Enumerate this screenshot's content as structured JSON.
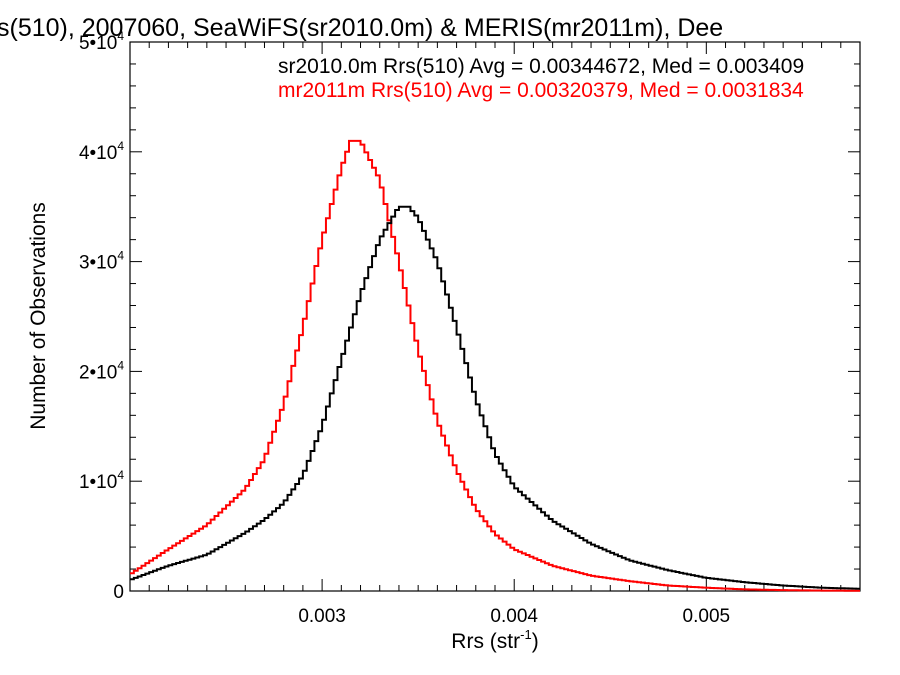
{
  "chart_data": {
    "type": "line",
    "title": "s(510), 2007060, SeaWiFS(sr2010.0m) & MERIS(mr2011m), Dee",
    "xlabel_main": "Rrs (str",
    "xlabel_sup": "-1",
    "xlabel_close": ")",
    "ylabel": "Number of Observations",
    "xlim": [
      0.002,
      0.0058
    ],
    "ylim": [
      0,
      50000
    ],
    "x_ticks": [
      {
        "value": 0.003,
        "label": "0.003"
      },
      {
        "value": 0.004,
        "label": "0.004"
      },
      {
        "value": 0.005,
        "label": "0.005"
      }
    ],
    "y_ticks": [
      {
        "value": 0,
        "mantissa": "0",
        "exp": ""
      },
      {
        "value": 10000,
        "mantissa": "1•10",
        "exp": "4"
      },
      {
        "value": 20000,
        "mantissa": "2•10",
        "exp": "4"
      },
      {
        "value": 30000,
        "mantissa": "3•10",
        "exp": "4"
      },
      {
        "value": 40000,
        "mantissa": "4•10",
        "exp": "4"
      },
      {
        "value": 50000,
        "mantissa": "5•10",
        "exp": "4"
      }
    ],
    "grid": false,
    "legend_placement": "top-right",
    "series": [
      {
        "name": "sr2010.0m Rrs(510) Avg = 0.00344672, Med = 0.003409",
        "color": "#000000",
        "x": [
          0.002,
          0.0022,
          0.0024,
          0.0026,
          0.0027,
          0.0028,
          0.0029,
          0.003,
          0.0031,
          0.0032,
          0.0033,
          0.0034,
          0.00345,
          0.0035,
          0.0036,
          0.0037,
          0.0038,
          0.0039,
          0.004,
          0.0042,
          0.0044,
          0.0046,
          0.0048,
          0.005,
          0.0052,
          0.0054,
          0.0056,
          0.0058
        ],
        "y": [
          1000,
          2300,
          3300,
          5300,
          6500,
          8000,
          10500,
          15000,
          21000,
          27000,
          32000,
          35000,
          35000,
          34000,
          30000,
          24000,
          17500,
          12500,
          9500,
          6400,
          4300,
          2800,
          1900,
          1200,
          800,
          500,
          300,
          200
        ]
      },
      {
        "name": "mr2011m Rrs(510) Avg = 0.00320379, Med = 0.0031834",
        "color": "#ff0000",
        "x": [
          0.002,
          0.0022,
          0.0024,
          0.0026,
          0.0027,
          0.0028,
          0.0029,
          0.003,
          0.0031,
          0.00315,
          0.0032,
          0.0033,
          0.0034,
          0.0035,
          0.0036,
          0.0037,
          0.0038,
          0.0039,
          0.004,
          0.0042,
          0.0044,
          0.0046,
          0.0048,
          0.005,
          0.0052,
          0.0054,
          0.0056,
          0.0058
        ],
        "y": [
          1500,
          3800,
          6000,
          9300,
          12000,
          17000,
          24000,
          32000,
          38500,
          41000,
          41000,
          37500,
          30000,
          22000,
          15500,
          11000,
          7500,
          5200,
          3800,
          2300,
          1400,
          900,
          500,
          300,
          150,
          80,
          40,
          20
        ]
      }
    ]
  }
}
